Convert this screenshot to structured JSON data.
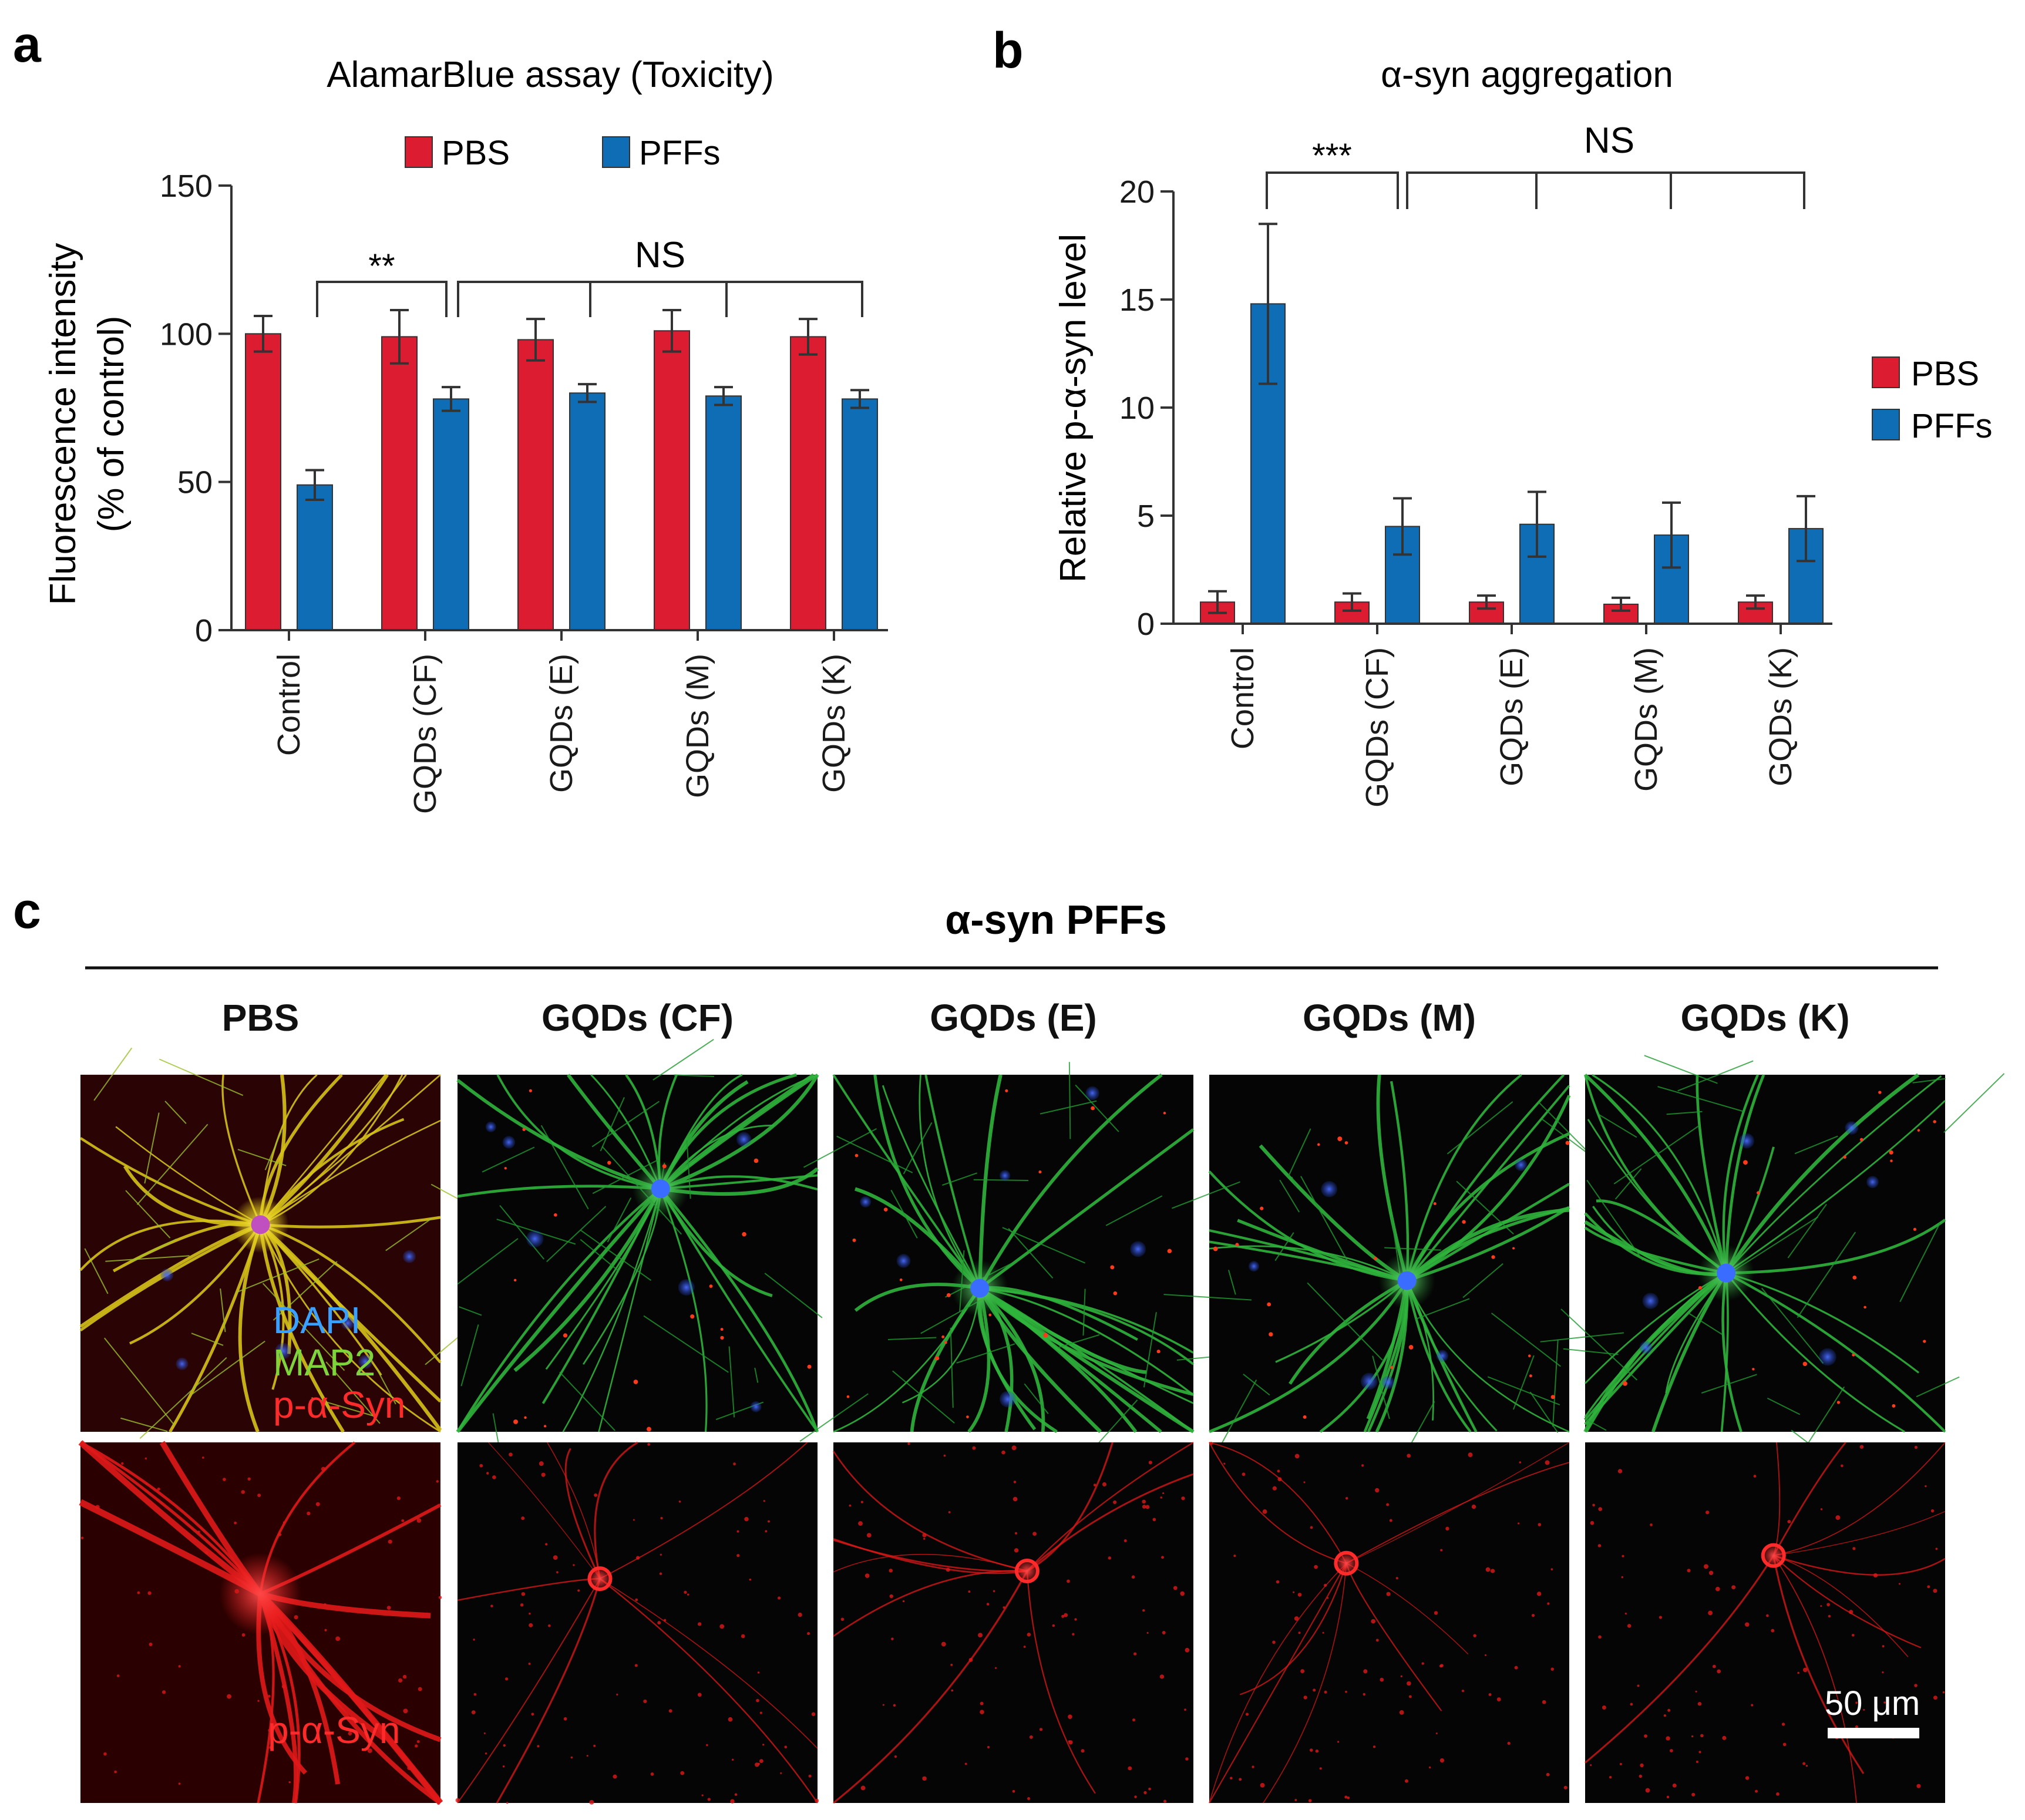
{
  "panels": {
    "a": {
      "letter": "a"
    },
    "b": {
      "letter": "b"
    },
    "c": {
      "letter": "c"
    }
  },
  "colors": {
    "pbs": "#dc1c31",
    "pffs": "#0f6db6",
    "axis": "#333333",
    "text": "#1a1a1a"
  },
  "chart_data": [
    {
      "type": "bar",
      "title": "AlamarBlue assay (Toxicity)",
      "ylabel_line1": "Fluorescence intensity",
      "ylabel_line2": "(% of control)",
      "xlabel": "",
      "ylim": [
        0,
        150
      ],
      "yticks": [
        0,
        50,
        100,
        150
      ],
      "categories": [
        "Control",
        "GQDs (CF)",
        "GQDs (E)",
        "GQDs (M)",
        "GQDs (K)"
      ],
      "series": [
        {
          "name": "PBS",
          "values": [
            100,
            99,
            98,
            101,
            99
          ],
          "errors": [
            6,
            9,
            7,
            7,
            6
          ]
        },
        {
          "name": "PFFs",
          "values": [
            49,
            78,
            80,
            79,
            78
          ],
          "errors": [
            5,
            4,
            3,
            3,
            3
          ]
        }
      ],
      "legend": "top",
      "annotations": {
        "sig": "**",
        "ns": "NS"
      }
    },
    {
      "type": "bar",
      "title": "α-syn aggregation",
      "ylabel": "Relative p-α-syn level",
      "xlabel": "",
      "ylim": [
        0,
        20
      ],
      "yticks": [
        0,
        5,
        10,
        15,
        20
      ],
      "categories": [
        "Control",
        "GQDs (CF)",
        "GQDs (E)",
        "GQDs (M)",
        "GQDs (K)"
      ],
      "series": [
        {
          "name": "PBS",
          "values": [
            1.0,
            1.0,
            1.0,
            0.9,
            1.0
          ],
          "errors": [
            0.5,
            0.4,
            0.3,
            0.3,
            0.3
          ]
        },
        {
          "name": "PFFs",
          "values": [
            14.8,
            4.5,
            4.6,
            4.1,
            4.4
          ],
          "errors": [
            3.7,
            1.3,
            1.5,
            1.5,
            1.5
          ]
        }
      ],
      "legend": "right",
      "annotations": {
        "sig": "***",
        "ns": "NS"
      }
    }
  ],
  "micrographs": {
    "header": "α-syn PFFs",
    "columns": [
      "PBS",
      "GQDs (CF)",
      "GQDs (E)",
      "GQDs (M)",
      "GQDs (K)"
    ],
    "merge_legend": [
      "DAPI",
      "MAP2",
      "p-α-Syn"
    ],
    "merge_legend_colors": [
      "#3aa0ff",
      "#7ed43a",
      "#ff2a2a"
    ],
    "single_label": "p-α-Syn",
    "scale_bar": "50 μm"
  }
}
